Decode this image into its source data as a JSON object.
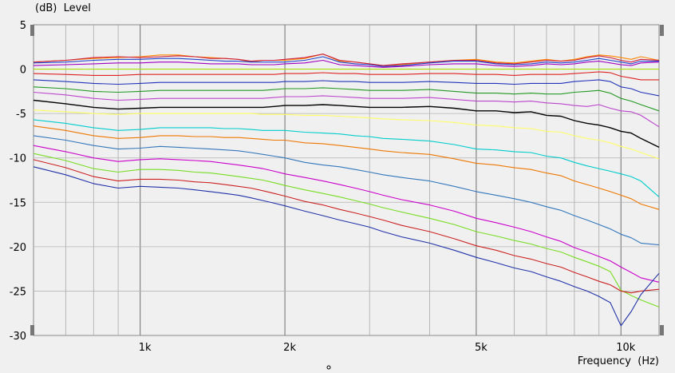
{
  "chart_data": {
    "type": "line",
    "ylabel": "(dB)  Level",
    "xlabel": "Frequency  (Hz)",
    "x_scale": "log",
    "xlim": [
      600,
      12000
    ],
    "ylim": [
      -30,
      5
    ],
    "grid": true,
    "y_ticks": [
      5,
      0,
      -5,
      -10,
      -15,
      -20,
      -25,
      -30
    ],
    "y_tick_labels": [
      "5",
      "0",
      "-5",
      "-10",
      "-15",
      "-20",
      "-25",
      "-30"
    ],
    "x_ticks": [
      1000,
      2000,
      5000,
      10000
    ],
    "x_tick_labels": [
      "1k",
      "2k",
      "5k",
      "10k"
    ],
    "x": [
      600,
      700,
      800,
      900,
      1000,
      1100,
      1200,
      1300,
      1400,
      1500,
      1600,
      1700,
      1800,
      1900,
      2000,
      2200,
      2400,
      2600,
      2800,
      3000,
      3200,
      3500,
      4000,
      4500,
      5000,
      5500,
      6000,
      6500,
      7000,
      7500,
      8000,
      8500,
      9000,
      9500,
      10000,
      10500,
      11000,
      12000
    ],
    "series": [
      {
        "color": "#ff8800",
        "values": [
          0.8,
          1.0,
          1.2,
          1.3,
          1.4,
          1.6,
          1.6,
          1.4,
          1.3,
          1.2,
          1.1,
          0.8,
          1.0,
          1.0,
          1.0,
          1.2,
          1.7,
          0.9,
          0.8,
          0.6,
          0.4,
          0.5,
          0.8,
          1.0,
          1.1,
          0.8,
          0.7,
          0.9,
          1.1,
          0.9,
          1.1,
          1.4,
          1.6,
          1.5,
          1.3,
          1.1,
          1.4,
          1.0
        ]
      },
      {
        "color": "#cc2244",
        "values": [
          0.8,
          1.0,
          1.3,
          1.4,
          1.3,
          1.4,
          1.5,
          1.4,
          1.2,
          1.2,
          1.1,
          0.9,
          1.0,
          1.0,
          1.1,
          1.3,
          1.7,
          1.0,
          0.8,
          0.6,
          0.4,
          0.6,
          0.8,
          1.0,
          1.0,
          0.7,
          0.6,
          0.8,
          1.0,
          0.9,
          1.0,
          1.3,
          1.5,
          1.3,
          1.0,
          0.8,
          1.1,
          1.0
        ]
      },
      {
        "color": "#2244cc",
        "values": [
          0.7,
          0.8,
          1.0,
          1.1,
          1.1,
          1.2,
          1.2,
          1.1,
          1.0,
          0.9,
          0.9,
          0.8,
          0.8,
          0.8,
          0.8,
          1.0,
          1.4,
          0.8,
          0.6,
          0.5,
          0.3,
          0.4,
          0.7,
          0.9,
          0.9,
          0.6,
          0.5,
          0.6,
          0.8,
          0.7,
          0.8,
          1.0,
          1.2,
          1.0,
          0.8,
          0.6,
          0.9,
          0.9
        ]
      },
      {
        "color": "#a000c0",
        "values": [
          0.4,
          0.5,
          0.6,
          0.7,
          0.7,
          0.8,
          0.8,
          0.7,
          0.6,
          0.6,
          0.6,
          0.5,
          0.5,
          0.5,
          0.6,
          0.7,
          1.0,
          0.5,
          0.4,
          0.3,
          0.2,
          0.3,
          0.5,
          0.6,
          0.6,
          0.4,
          0.3,
          0.4,
          0.6,
          0.5,
          0.6,
          0.8,
          0.9,
          0.7,
          0.5,
          0.4,
          0.7,
          0.8
        ]
      },
      {
        "color": "#aadd00",
        "values": [
          0.0,
          0.0,
          0.0,
          0.0,
          0.0,
          0.0,
          0.0,
          0.0,
          0.0,
          0.0,
          0.0,
          0.0,
          0.0,
          0.0,
          0.0,
          0.0,
          0.0,
          0.0,
          0.0,
          0.0,
          0.0,
          0.0,
          0.0,
          0.0,
          0.0,
          0.0,
          0.0,
          0.0,
          0.0,
          0.0,
          0.0,
          0.0,
          0.0,
          0.0,
          0.0,
          0.0,
          0.0,
          0.0
        ]
      },
      {
        "color": "#dd2222",
        "values": [
          -0.5,
          -0.6,
          -0.7,
          -0.7,
          -0.6,
          -0.6,
          -0.6,
          -0.6,
          -0.6,
          -0.6,
          -0.6,
          -0.6,
          -0.6,
          -0.6,
          -0.5,
          -0.5,
          -0.4,
          -0.5,
          -0.5,
          -0.6,
          -0.6,
          -0.6,
          -0.5,
          -0.5,
          -0.6,
          -0.6,
          -0.7,
          -0.6,
          -0.6,
          -0.6,
          -0.5,
          -0.4,
          -0.3,
          -0.4,
          -0.8,
          -1.0,
          -1.2,
          -1.2
        ]
      },
      {
        "color": "#2233bb",
        "values": [
          -1.2,
          -1.4,
          -1.6,
          -1.7,
          -1.6,
          -1.5,
          -1.5,
          -1.5,
          -1.5,
          -1.5,
          -1.5,
          -1.5,
          -1.5,
          -1.5,
          -1.4,
          -1.4,
          -1.3,
          -1.4,
          -1.4,
          -1.5,
          -1.5,
          -1.5,
          -1.4,
          -1.5,
          -1.6,
          -1.6,
          -1.7,
          -1.6,
          -1.6,
          -1.6,
          -1.4,
          -1.3,
          -1.2,
          -1.4,
          -2.0,
          -2.2,
          -2.6,
          -3.0
        ]
      },
      {
        "color": "#229922",
        "values": [
          -2.0,
          -2.2,
          -2.5,
          -2.6,
          -2.5,
          -2.4,
          -2.4,
          -2.4,
          -2.4,
          -2.4,
          -2.4,
          -2.4,
          -2.4,
          -2.3,
          -2.2,
          -2.2,
          -2.1,
          -2.2,
          -2.3,
          -2.4,
          -2.4,
          -2.4,
          -2.3,
          -2.5,
          -2.7,
          -2.7,
          -2.8,
          -2.7,
          -2.8,
          -2.8,
          -2.6,
          -2.5,
          -2.4,
          -2.7,
          -3.3,
          -3.6,
          -4.0,
          -4.7
        ]
      },
      {
        "color": "#bb44cc",
        "values": [
          -2.6,
          -2.9,
          -3.3,
          -3.5,
          -3.4,
          -3.3,
          -3.3,
          -3.3,
          -3.3,
          -3.3,
          -3.3,
          -3.3,
          -3.3,
          -3.2,
          -3.1,
          -3.1,
          -3.0,
          -3.1,
          -3.2,
          -3.3,
          -3.3,
          -3.3,
          -3.2,
          -3.4,
          -3.6,
          -3.6,
          -3.7,
          -3.6,
          -3.8,
          -3.9,
          -4.1,
          -4.2,
          -4.0,
          -4.4,
          -4.7,
          -4.8,
          -5.2,
          -6.5
        ]
      },
      {
        "color": "#000000",
        "values": [
          -3.5,
          -3.9,
          -4.3,
          -4.5,
          -4.4,
          -4.3,
          -4.3,
          -4.3,
          -4.3,
          -4.3,
          -4.3,
          -4.3,
          -4.3,
          -4.2,
          -4.1,
          -4.1,
          -4.0,
          -4.1,
          -4.2,
          -4.3,
          -4.3,
          -4.3,
          -4.2,
          -4.4,
          -4.7,
          -4.7,
          -4.9,
          -4.8,
          -5.2,
          -5.3,
          -5.8,
          -6.1,
          -6.3,
          -6.6,
          -7.0,
          -7.2,
          -7.8,
          -8.8
        ]
      },
      {
        "color": "#ffff66",
        "values": [
          -4.6,
          -4.8,
          -5.0,
          -5.1,
          -5.0,
          -5.0,
          -5.0,
          -5.0,
          -5.0,
          -5.0,
          -5.0,
          -5.0,
          -5.1,
          -5.1,
          -5.1,
          -5.2,
          -5.2,
          -5.3,
          -5.4,
          -5.5,
          -5.6,
          -5.7,
          -5.8,
          -6.0,
          -6.3,
          -6.4,
          -6.6,
          -6.7,
          -7.0,
          -7.1,
          -7.5,
          -7.8,
          -8.0,
          -8.3,
          -8.7,
          -9.0,
          -9.4,
          -10.1
        ]
      },
      {
        "color": "#00cccc",
        "values": [
          -5.7,
          -6.1,
          -6.6,
          -6.9,
          -6.8,
          -6.6,
          -6.6,
          -6.6,
          -6.6,
          -6.7,
          -6.7,
          -6.8,
          -6.9,
          -6.9,
          -6.9,
          -7.1,
          -7.2,
          -7.3,
          -7.5,
          -7.6,
          -7.8,
          -7.9,
          -8.1,
          -8.5,
          -9.0,
          -9.1,
          -9.3,
          -9.4,
          -9.8,
          -10.0,
          -10.5,
          -10.9,
          -11.2,
          -11.5,
          -11.8,
          -12.1,
          -12.6,
          -14.4
        ]
      },
      {
        "color": "#ee7700",
        "values": [
          -6.4,
          -6.9,
          -7.5,
          -7.8,
          -7.7,
          -7.5,
          -7.5,
          -7.6,
          -7.6,
          -7.7,
          -7.7,
          -7.8,
          -7.9,
          -8.0,
          -8.0,
          -8.3,
          -8.4,
          -8.6,
          -8.8,
          -9.0,
          -9.2,
          -9.4,
          -9.6,
          -10.1,
          -10.6,
          -10.8,
          -11.1,
          -11.3,
          -11.7,
          -12.0,
          -12.6,
          -13.0,
          -13.4,
          -13.8,
          -14.2,
          -14.6,
          -15.2,
          -15.8
        ]
      },
      {
        "color": "#3377bb",
        "values": [
          -7.5,
          -8.0,
          -8.6,
          -9.0,
          -8.9,
          -8.7,
          -8.8,
          -8.9,
          -9.0,
          -9.1,
          -9.2,
          -9.4,
          -9.6,
          -9.8,
          -10.0,
          -10.5,
          -10.8,
          -11.0,
          -11.3,
          -11.6,
          -11.9,
          -12.2,
          -12.6,
          -13.2,
          -13.8,
          -14.2,
          -14.6,
          -15.0,
          -15.5,
          -15.9,
          -16.5,
          -17.0,
          -17.5,
          -18.0,
          -18.6,
          -19.0,
          -19.6,
          -19.8
        ]
      },
      {
        "color": "#cc00cc",
        "values": [
          -8.6,
          -9.3,
          -10.0,
          -10.4,
          -10.2,
          -10.1,
          -10.2,
          -10.3,
          -10.4,
          -10.6,
          -10.8,
          -11.0,
          -11.2,
          -11.5,
          -11.8,
          -12.2,
          -12.6,
          -13.0,
          -13.4,
          -13.8,
          -14.2,
          -14.7,
          -15.3,
          -16.0,
          -16.8,
          -17.3,
          -17.8,
          -18.3,
          -18.9,
          -19.4,
          -20.1,
          -20.6,
          -21.1,
          -21.6,
          -22.3,
          -22.9,
          -23.5,
          -24.0
        ]
      },
      {
        "color": "#77dd22",
        "values": [
          -9.5,
          -10.3,
          -11.2,
          -11.6,
          -11.3,
          -11.3,
          -11.4,
          -11.6,
          -11.7,
          -11.9,
          -12.1,
          -12.3,
          -12.5,
          -12.8,
          -13.1,
          -13.6,
          -14.0,
          -14.4,
          -14.8,
          -15.2,
          -15.6,
          -16.1,
          -16.8,
          -17.5,
          -18.3,
          -18.8,
          -19.3,
          -19.7,
          -20.2,
          -20.6,
          -21.2,
          -21.7,
          -22.2,
          -22.8,
          -24.9,
          -25.5,
          -26.0,
          -26.8
        ]
      },
      {
        "color": "#cc2222",
        "values": [
          -10.2,
          -11.1,
          -12.1,
          -12.6,
          -12.4,
          -12.4,
          -12.5,
          -12.7,
          -12.8,
          -13.0,
          -13.2,
          -13.4,
          -13.7,
          -14.0,
          -14.3,
          -14.9,
          -15.3,
          -15.8,
          -16.2,
          -16.6,
          -17.0,
          -17.6,
          -18.3,
          -19.1,
          -19.9,
          -20.4,
          -21.0,
          -21.4,
          -21.9,
          -22.3,
          -22.9,
          -23.4,
          -23.9,
          -24.3,
          -25.0,
          -25.2,
          -25.0,
          -24.8
        ]
      },
      {
        "color": "#2233aa",
        "values": [
          -11.0,
          -11.9,
          -12.9,
          -13.4,
          -13.2,
          -13.3,
          -13.4,
          -13.6,
          -13.8,
          -14.0,
          -14.2,
          -14.5,
          -14.8,
          -15.1,
          -15.4,
          -16.0,
          -16.5,
          -17.0,
          -17.4,
          -17.8,
          -18.3,
          -18.9,
          -19.6,
          -20.4,
          -21.2,
          -21.8,
          -22.4,
          -22.8,
          -23.4,
          -23.9,
          -24.5,
          -25.0,
          -25.6,
          -26.3,
          -28.9,
          -27.3,
          -25.4,
          -23.0
        ]
      }
    ]
  }
}
